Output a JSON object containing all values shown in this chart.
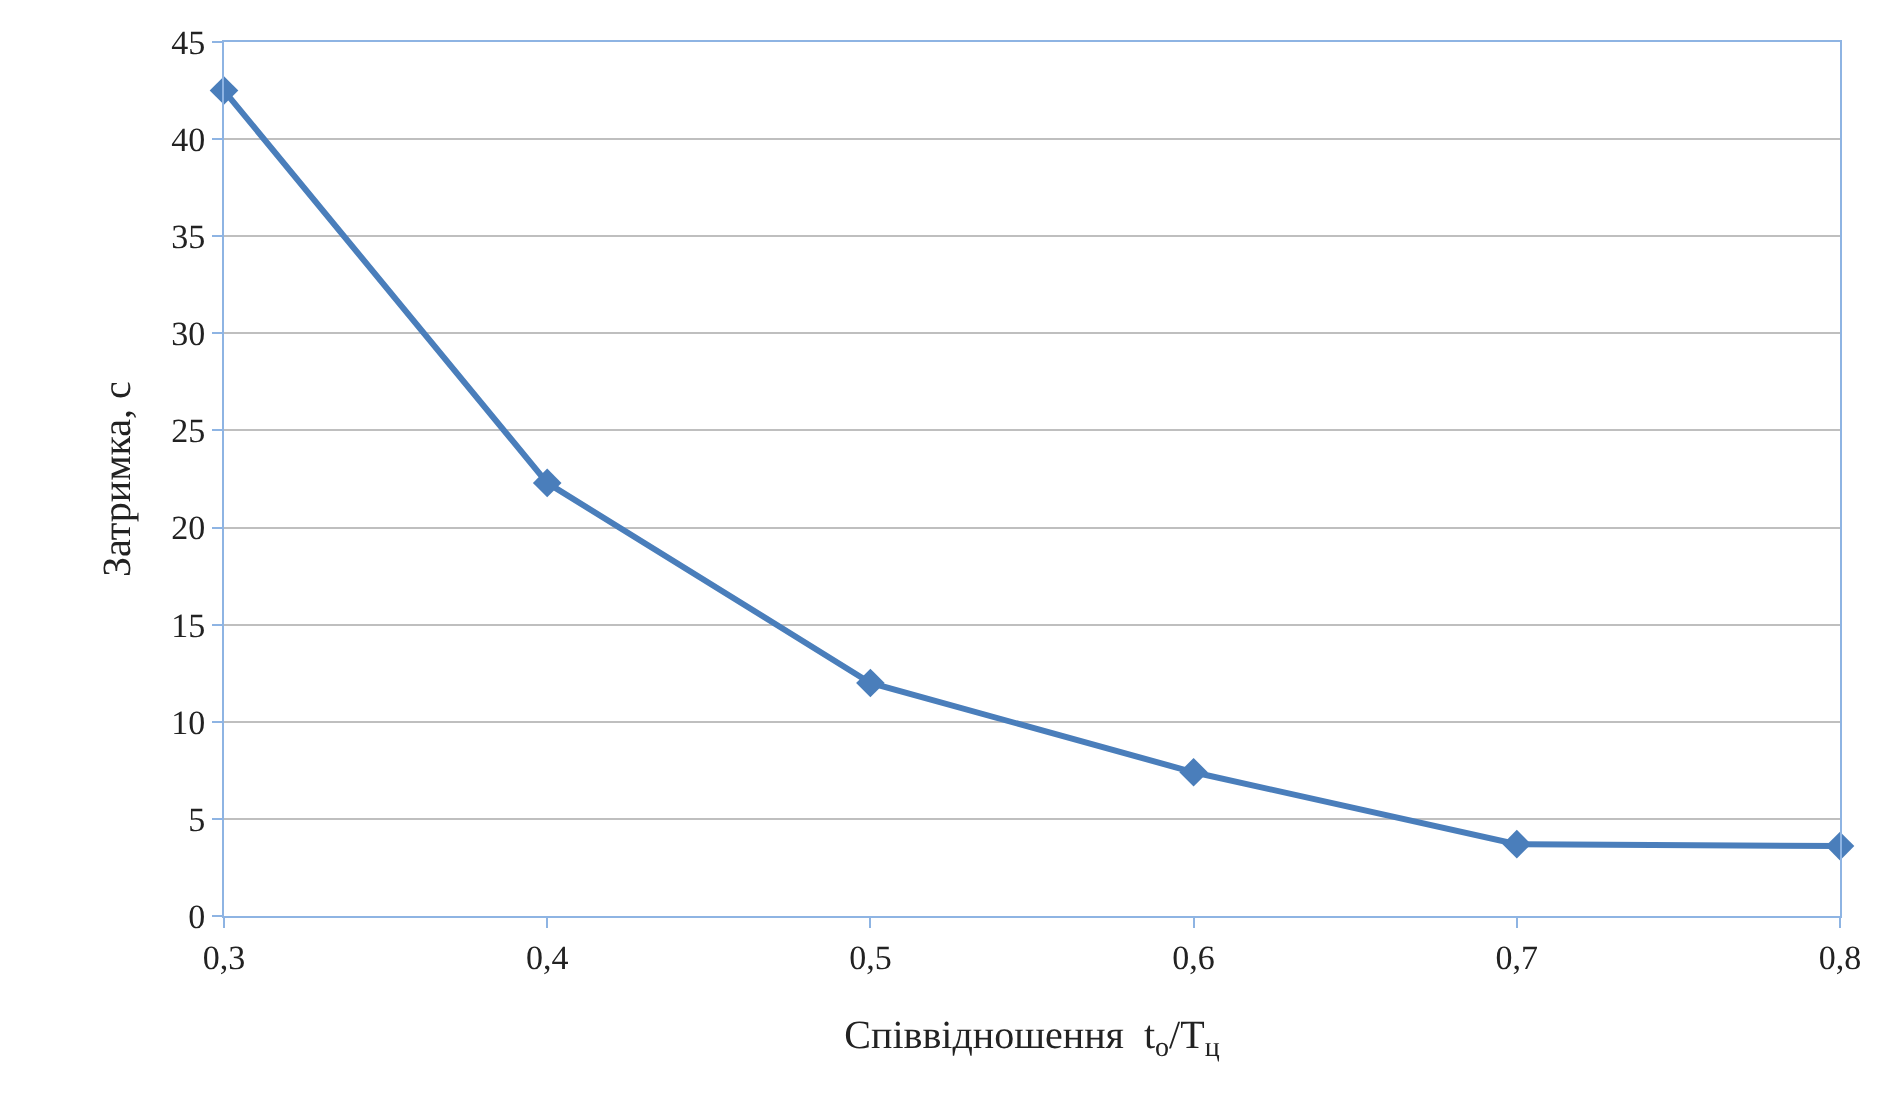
{
  "chart_data": {
    "type": "line",
    "xlabel": "Співвідношення  t$_{o}$/T$_{ц}$",
    "ylabel": "Затримка, с",
    "x": [
      0.3,
      0.4,
      0.5,
      0.6,
      0.7,
      0.8
    ],
    "series": [
      {
        "color": "#4a7ebb",
        "values": [
          42.5,
          22.3,
          12.0,
          7.4,
          3.7,
          3.6
        ]
      }
    ],
    "xlim": [
      0.3,
      0.8
    ],
    "xticks": [
      {
        "value": 0.3,
        "label": "0,3"
      },
      {
        "value": 0.4,
        "label": "0,4"
      },
      {
        "value": 0.5,
        "label": "0,5"
      },
      {
        "value": 0.6,
        "label": "0,6"
      },
      {
        "value": 0.7,
        "label": "0,7"
      },
      {
        "value": 0.8,
        "label": "0,8"
      }
    ],
    "ylim": [
      0,
      45
    ],
    "yticks": [
      0,
      5,
      10,
      15,
      20,
      25,
      30,
      35,
      40,
      45
    ],
    "grid": "y",
    "marker": "diamond",
    "line_style": "solid"
  }
}
